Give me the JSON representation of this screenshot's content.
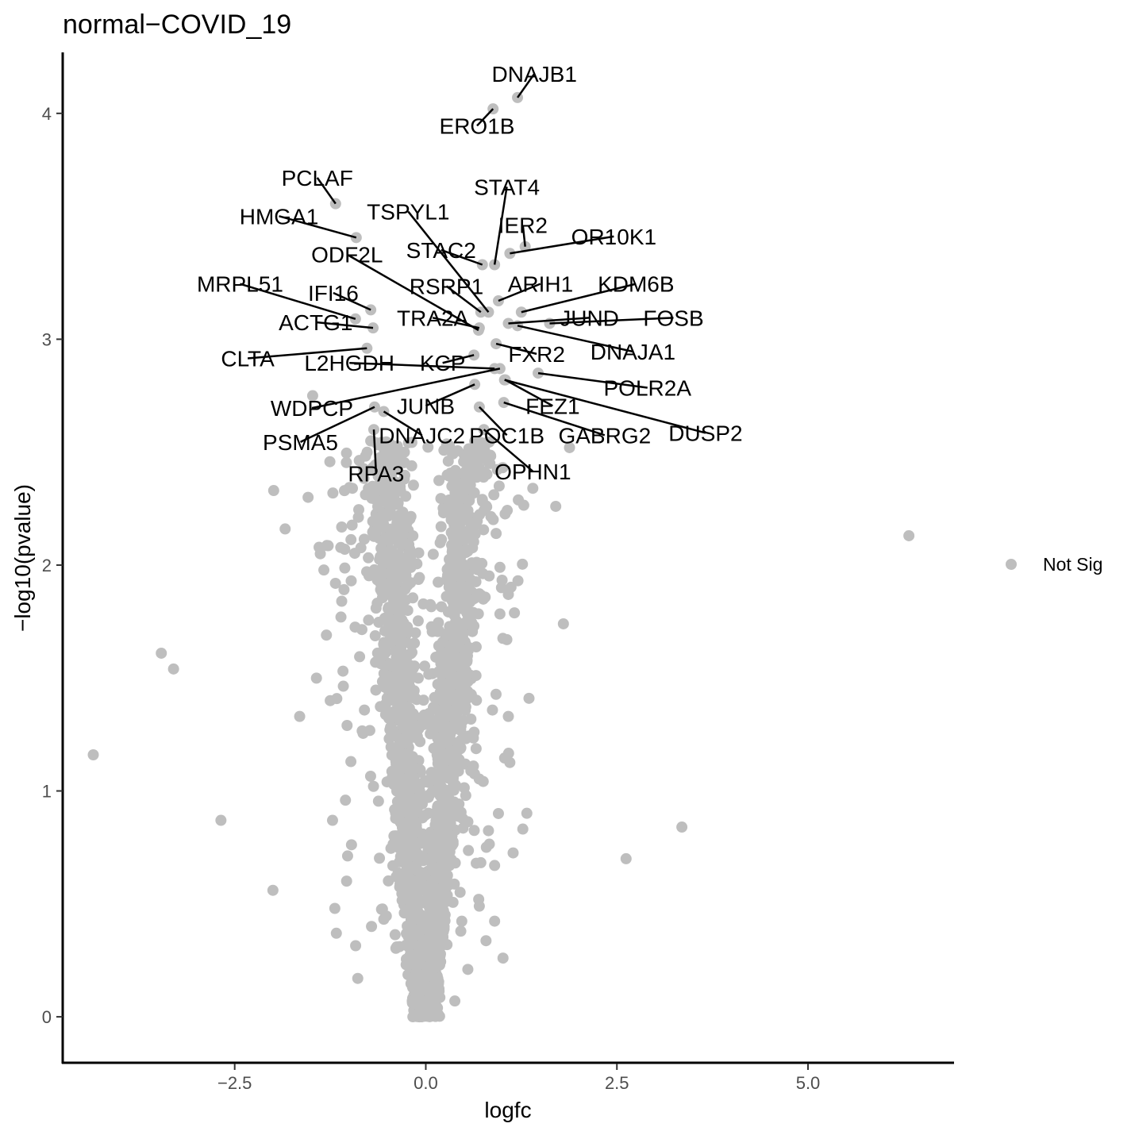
{
  "chart_data": {
    "type": "scatter",
    "title": "normal−COVID_19",
    "xlabel": "logfc",
    "ylabel": "−log10(pvalue)",
    "xlim": [
      -4.75,
      6.9
    ],
    "ylim": [
      -0.2,
      4.27
    ],
    "x_ticks": [
      -2.5,
      0.0,
      2.5,
      5.0
    ],
    "x_tick_labels": [
      "−2.5",
      "0.0",
      "2.5",
      "5.0"
    ],
    "y_ticks": [
      0,
      1,
      2,
      3,
      4
    ],
    "y_tick_labels": [
      "0",
      "1",
      "2",
      "3",
      "4"
    ],
    "grid": false,
    "legend": {
      "position": "right",
      "entries": [
        {
          "label": "Not Sig",
          "color": "#bebebe"
        }
      ]
    },
    "point_color": "#bebebe",
    "labeled_genes": [
      {
        "name": "DNAJB1",
        "x": 1.2,
        "y": 4.07,
        "label_x": 1.42,
        "label_y": 4.14
      },
      {
        "name": "ERO1B",
        "x": 0.88,
        "y": 4.02,
        "label_x": 0.67,
        "label_y": 3.91
      },
      {
        "name": "PCLAF",
        "x": -1.18,
        "y": 3.6,
        "label_x": -1.42,
        "label_y": 3.68
      },
      {
        "name": "HMGA1",
        "x": -0.91,
        "y": 3.45,
        "label_x": -1.92,
        "label_y": 3.51
      },
      {
        "name": "TSPYL1",
        "x": 0.82,
        "y": 3.12,
        "label_x": -0.23,
        "label_y": 3.53
      },
      {
        "name": "STAT4",
        "x": 0.9,
        "y": 3.33,
        "label_x": 1.06,
        "label_y": 3.64
      },
      {
        "name": "IER2",
        "x": 1.3,
        "y": 3.41,
        "label_x": 1.27,
        "label_y": 3.47
      },
      {
        "name": "OR10K1",
        "x": 1.1,
        "y": 3.38,
        "label_x": 2.46,
        "label_y": 3.42
      },
      {
        "name": "ODF2L",
        "x": 0.69,
        "y": 3.04,
        "label_x": -1.03,
        "label_y": 3.34
      },
      {
        "name": "STAC2",
        "x": 0.74,
        "y": 3.33,
        "label_x": 0.2,
        "label_y": 3.36
      },
      {
        "name": "ARIH1",
        "x": 0.95,
        "y": 3.17,
        "label_x": 1.5,
        "label_y": 3.21
      },
      {
        "name": "KDM6B",
        "x": 1.25,
        "y": 3.12,
        "label_x": 2.75,
        "label_y": 3.21
      },
      {
        "name": "MRPL51",
        "x": -0.92,
        "y": 3.09,
        "label_x": -2.43,
        "label_y": 3.21
      },
      {
        "name": "IFI16",
        "x": -0.72,
        "y": 3.13,
        "label_x": -1.21,
        "label_y": 3.17
      },
      {
        "name": "RSRP1",
        "x": 0.72,
        "y": 3.12,
        "label_x": 0.27,
        "label_y": 3.2
      },
      {
        "name": "JUND",
        "x": 1.08,
        "y": 3.07,
        "label_x": 2.14,
        "label_y": 3.06
      },
      {
        "name": "FOSB",
        "x": 1.62,
        "y": 3.07,
        "label_x": 3.24,
        "label_y": 3.06
      },
      {
        "name": "ACTG1",
        "x": -0.69,
        "y": 3.05,
        "label_x": -1.44,
        "label_y": 3.04
      },
      {
        "name": "TRA2A",
        "x": 0.7,
        "y": 3.05,
        "label_x": 0.09,
        "label_y": 3.06
      },
      {
        "name": "DNAJA1",
        "x": 1.2,
        "y": 3.06,
        "label_x": 2.71,
        "label_y": 2.91
      },
      {
        "name": "FXR2",
        "x": 0.92,
        "y": 2.98,
        "label_x": 1.45,
        "label_y": 2.9
      },
      {
        "name": "CLTA",
        "x": -0.77,
        "y": 2.96,
        "label_x": -2.33,
        "label_y": 2.88
      },
      {
        "name": "L2HGDH",
        "x": 0.9,
        "y": 2.87,
        "label_x": -1.0,
        "label_y": 2.86
      },
      {
        "name": "KCP",
        "x": 0.63,
        "y": 2.93,
        "label_x": 0.22,
        "label_y": 2.86
      },
      {
        "name": "POLR2A",
        "x": 1.47,
        "y": 2.85,
        "label_x": 2.9,
        "label_y": 2.75
      },
      {
        "name": "WDPCP",
        "x": 0.97,
        "y": 2.87,
        "label_x": -1.49,
        "label_y": 2.66
      },
      {
        "name": "JUNB",
        "x": 0.64,
        "y": 2.8,
        "label_x": 0.0,
        "label_y": 2.67
      },
      {
        "name": "FEZ1",
        "x": 1.04,
        "y": 2.82,
        "label_x": 1.66,
        "label_y": 2.67
      },
      {
        "name": "DUSP2",
        "x": 1.03,
        "y": 2.82,
        "label_x": 3.66,
        "label_y": 2.55
      },
      {
        "name": "PSMA5",
        "x": -0.67,
        "y": 2.7,
        "label_x": -1.64,
        "label_y": 2.51
      },
      {
        "name": "DNAJC2",
        "x": -0.55,
        "y": 2.68,
        "label_x": -0.05,
        "label_y": 2.54
      },
      {
        "name": "POC1B",
        "x": 0.7,
        "y": 2.7,
        "label_x": 1.06,
        "label_y": 2.54
      },
      {
        "name": "GABRG2",
        "x": 1.02,
        "y": 2.72,
        "label_x": 2.34,
        "label_y": 2.54
      },
      {
        "name": "RPA3",
        "x": -0.68,
        "y": 2.6,
        "label_x": -0.65,
        "label_y": 2.37
      },
      {
        "name": "OPHN1",
        "x": 0.76,
        "y": 2.6,
        "label_x": 1.4,
        "label_y": 2.38
      }
    ],
    "notable_points": [
      {
        "x": 6.32,
        "y": 2.13
      },
      {
        "x": 3.35,
        "y": 0.84
      },
      {
        "x": 2.62,
        "y": 0.7
      },
      {
        "x": 1.8,
        "y": 1.74
      },
      {
        "x": 1.88,
        "y": 2.52
      },
      {
        "x": 1.7,
        "y": 2.26
      },
      {
        "x": 1.4,
        "y": 2.34
      },
      {
        "x": 1.35,
        "y": 1.41
      },
      {
        "x": 1.08,
        "y": 1.87
      },
      {
        "x": 1.06,
        "y": 1.67
      },
      {
        "x": 1.08,
        "y": 1.33
      },
      {
        "x": 0.95,
        "y": 0.9
      },
      {
        "x": 1.01,
        "y": 0.26
      },
      {
        "x": 0.38,
        "y": 0.07
      },
      {
        "x": 0.55,
        "y": 0.21
      },
      {
        "x": -4.35,
        "y": 1.16
      },
      {
        "x": -3.46,
        "y": 1.61
      },
      {
        "x": -3.3,
        "y": 1.54
      },
      {
        "x": -2.68,
        "y": 0.87
      },
      {
        "x": -2.0,
        "y": 0.56
      },
      {
        "x": -1.65,
        "y": 1.33
      },
      {
        "x": -1.54,
        "y": 2.3
      },
      {
        "x": -1.48,
        "y": 2.75
      },
      {
        "x": -1.38,
        "y": 2.05
      },
      {
        "x": -1.3,
        "y": 1.69
      },
      {
        "x": -1.25,
        "y": 1.4
      },
      {
        "x": -1.22,
        "y": 0.87
      },
      {
        "x": -1.19,
        "y": 0.48
      },
      {
        "x": -1.17,
        "y": 0.37
      },
      {
        "x": -1.11,
        "y": 1.77
      },
      {
        "x": -1.03,
        "y": 1.29
      },
      {
        "x": -0.89,
        "y": 0.17
      },
      {
        "x": -0.71,
        "y": 0.4
      },
      {
        "x": -1.99,
        "y": 2.33
      },
      {
        "x": -1.84,
        "y": 2.16
      },
      {
        "x": -1.06,
        "y": 2.07
      },
      {
        "x": -0.96,
        "y": 2.34
      },
      {
        "x": -0.98,
        "y": 1.13
      },
      {
        "x": -1.1,
        "y": 1.84
      },
      {
        "x": 0.96,
        "y": 2.35
      },
      {
        "x": 0.92,
        "y": 2.14
      },
      {
        "x": 0.97,
        "y": 1.99
      },
      {
        "x": 0.99,
        "y": 1.9
      },
      {
        "x": 0.66,
        "y": 0.68
      },
      {
        "x": 0.7,
        "y": 0.49
      }
    ]
  }
}
